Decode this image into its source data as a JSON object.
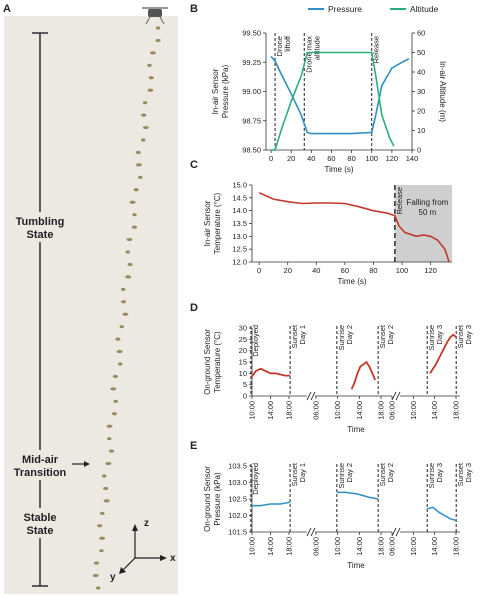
{
  "panel_a": {
    "letter": "A",
    "tumbling_label": [
      "Tumbling",
      "State"
    ],
    "transition_label": [
      "Mid-air",
      "Transition"
    ],
    "stable_label": [
      "Stable",
      "State"
    ],
    "axes": {
      "z": "z",
      "x": "x",
      "y": "y"
    },
    "colors": {
      "background": "#ece9e3",
      "seed": "#9c8a62"
    }
  },
  "chart_data": [
    {
      "id": "B",
      "type": "line",
      "letter": "B",
      "xlabel": "Time (s)",
      "ylabel_left": [
        "In-air Sensor",
        "Pressure (kPa)"
      ],
      "ylabel_right": "In-air Altitude (m)",
      "xlim": [
        -5,
        140
      ],
      "xticks": [
        0,
        20,
        40,
        60,
        80,
        100,
        120,
        140
      ],
      "ylim_left": [
        98.5,
        99.5
      ],
      "yticks_left": [
        "99.50",
        "99.25",
        "99.00",
        "98.75",
        "98.50"
      ],
      "ylim_right": [
        0,
        60
      ],
      "yticks_right": [
        0,
        10,
        20,
        30,
        40,
        50,
        60
      ],
      "legend": {
        "position": "top",
        "entries": [
          "Pressure",
          "Altitude"
        ]
      },
      "vlines": [
        {
          "x": 4,
          "label": [
            "Drone",
            "liftoff"
          ]
        },
        {
          "x": 33,
          "label": [
            "Drone max",
            "altitude"
          ]
        },
        {
          "x": 100,
          "label": [
            "Release"
          ]
        }
      ],
      "series": [
        {
          "name": "Pressure",
          "axis": "left",
          "color": "#2e8fc4",
          "x": [
            0,
            4,
            10,
            20,
            30,
            36,
            40,
            60,
            80,
            100,
            104,
            110,
            120,
            130,
            137
          ],
          "y": [
            99.3,
            99.26,
            99.15,
            98.98,
            98.8,
            98.65,
            98.64,
            98.64,
            98.64,
            98.65,
            98.8,
            99.05,
            99.2,
            99.25,
            99.28
          ]
        },
        {
          "name": "Altitude",
          "axis": "right",
          "color": "#2bae7a",
          "x": [
            0,
            4,
            10,
            20,
            30,
            36,
            40,
            60,
            80,
            100,
            104,
            110,
            118,
            122
          ],
          "y": [
            0,
            0,
            10,
            25,
            38,
            50,
            50,
            50,
            50,
            50,
            38,
            18,
            6,
            2
          ]
        }
      ]
    },
    {
      "id": "C",
      "type": "line",
      "letter": "C",
      "xlabel": "Time (s)",
      "ylabel": [
        "In-air Sensor",
        "Temperature (°C)"
      ],
      "xlim": [
        -5,
        135
      ],
      "xticks": [
        0,
        20,
        40,
        60,
        80,
        100,
        120
      ],
      "ylim": [
        12.0,
        15.0
      ],
      "yticks": [
        "15.0",
        "14.5",
        "14.0",
        "13.5",
        "13.0",
        "12.5",
        "12.0"
      ],
      "vline": {
        "x": 95,
        "label": "Release"
      },
      "shade": {
        "x0": 95,
        "x1": 135,
        "label": [
          "Falling from",
          "50 m"
        ],
        "color": "#cfcfcf"
      },
      "series": [
        {
          "name": "",
          "color": "#c0392b",
          "x": [
            0,
            10,
            20,
            30,
            40,
            50,
            60,
            70,
            80,
            90,
            95,
            98,
            102,
            110,
            115,
            120,
            125,
            130,
            133
          ],
          "y": [
            14.7,
            14.45,
            14.35,
            14.28,
            14.3,
            14.3,
            14.28,
            14.15,
            14.0,
            13.9,
            13.8,
            13.4,
            13.15,
            13.0,
            13.05,
            13.0,
            12.85,
            12.5,
            12.0
          ]
        }
      ]
    },
    {
      "id": "D",
      "type": "line",
      "letter": "D",
      "xlabel": "Time",
      "ylabel": [
        "On-ground Sensor",
        "Temperature (°C)"
      ],
      "ylim": [
        0,
        30
      ],
      "yticks": [
        0,
        5,
        10,
        15,
        20,
        25,
        30
      ],
      "segments": [
        {
          "xticks": [
            "10:00",
            "14:00",
            "18:00"
          ],
          "lines": [
            {
              "pos": 0.1,
              "label": [
                "Deployed"
              ]
            },
            {
              "pos": 0.9,
              "label": [
                "Sunset",
                "Day 1"
              ]
            }
          ]
        },
        {
          "xticks": [
            "06:00",
            "10:00",
            "14:00",
            "18:00"
          ],
          "lines": [
            {
              "pos": 0.15,
              "label": [
                "Sunrise",
                "Day 2"
              ]
            },
            {
              "pos": 0.85,
              "label": [
                "Sunset",
                "Day 2"
              ]
            }
          ]
        },
        {
          "xticks": [
            "06:00",
            "10:00",
            "14:00",
            "18:00"
          ],
          "lines": [
            {
              "pos": 0.4,
              "label": [
                "Sunrise",
                "Day 3"
              ]
            },
            {
              "pos": 0.9,
              "label": [
                "Sunset",
                "Day 3"
              ]
            }
          ]
        }
      ],
      "series": [
        {
          "segment": 0,
          "color": "#c0392b",
          "t": [
            0.1,
            0.2,
            0.3,
            0.4,
            0.5,
            0.6,
            0.7,
            0.8,
            0.9
          ],
          "y": [
            8,
            11,
            12,
            11,
            10,
            10,
            9.5,
            9,
            9
          ]
        },
        {
          "segment": 1,
          "color": "#c0392b",
          "t": [
            0.4,
            0.45,
            0.5,
            0.55,
            0.6,
            0.65,
            0.7,
            0.75,
            0.8
          ],
          "y": [
            3,
            6,
            10,
            13,
            14,
            15,
            13,
            10,
            7
          ]
        },
        {
          "segment": 2,
          "color": "#c0392b",
          "t": [
            0.45,
            0.55,
            0.65,
            0.75,
            0.8,
            0.85,
            0.9
          ],
          "y": [
            10,
            14,
            19,
            24,
            26,
            27,
            26
          ]
        }
      ]
    },
    {
      "id": "E",
      "type": "line",
      "letter": "E",
      "xlabel": "Time",
      "ylabel": [
        "On-ground Sensor",
        "Pressure (kPa)"
      ],
      "ylim": [
        101.5,
        103.5
      ],
      "yticks": [
        "103.5",
        "103.0",
        "102.5",
        "102.0",
        "101.5"
      ],
      "segments": [
        {
          "xticks": [
            "10:00",
            "14:00",
            "18:00"
          ],
          "lines": [
            {
              "pos": 0.1,
              "label": [
                "Deployed"
              ]
            },
            {
              "pos": 0.9,
              "label": [
                "Sunset",
                "Day 1"
              ]
            }
          ]
        },
        {
          "xticks": [
            "06:00",
            "10:00",
            "14:00",
            "18:00"
          ],
          "lines": [
            {
              "pos": 0.15,
              "label": [
                "Sunrise",
                "Day 2"
              ]
            },
            {
              "pos": 0.85,
              "label": [
                "Sunset",
                "Day 2"
              ]
            }
          ]
        },
        {
          "xticks": [
            "06:00",
            "10:00",
            "14:00",
            "18:00"
          ],
          "lines": [
            {
              "pos": 0.4,
              "label": [
                "Sunrise",
                "Day 3"
              ]
            },
            {
              "pos": 0.9,
              "label": [
                "Sunset",
                "Day 3"
              ]
            }
          ]
        }
      ],
      "series": [
        {
          "segment": 0,
          "color": "#2e8fc4",
          "t": [
            0.1,
            0.3,
            0.5,
            0.7,
            0.9
          ],
          "y": [
            102.3,
            102.3,
            102.35,
            102.35,
            102.4
          ]
        },
        {
          "segment": 1,
          "color": "#2e8fc4",
          "t": [
            0.15,
            0.3,
            0.5,
            0.7,
            0.85
          ],
          "y": [
            102.7,
            102.7,
            102.65,
            102.55,
            102.5
          ]
        },
        {
          "segment": 2,
          "color": "#2e8fc4",
          "t": [
            0.4,
            0.5,
            0.6,
            0.7,
            0.8,
            0.9
          ],
          "y": [
            102.2,
            102.25,
            102.1,
            102.0,
            101.9,
            101.85
          ]
        }
      ]
    }
  ]
}
